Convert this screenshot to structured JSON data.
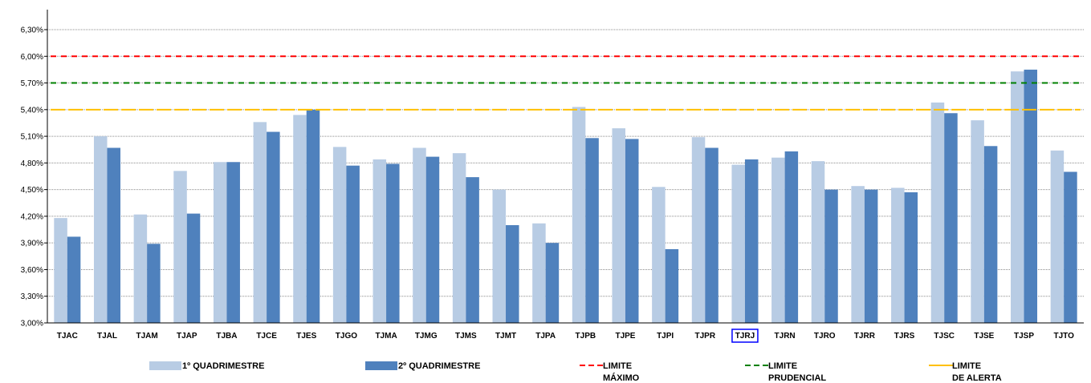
{
  "chart_data": {
    "type": "bar",
    "categories": [
      "TJAC",
      "TJAL",
      "TJAM",
      "TJAP",
      "TJBA",
      "TJCE",
      "TJES",
      "TJGO",
      "TJMA",
      "TJMG",
      "TJMS",
      "TJMT",
      "TJPA",
      "TJPB",
      "TJPE",
      "TJPI",
      "TJPR",
      "TJRJ",
      "TJRN",
      "TJRO",
      "TJRR",
      "TJRS",
      "TJSC",
      "TJSE",
      "TJSP",
      "TJTO"
    ],
    "highlighted_category": "TJRJ",
    "series": [
      {
        "name": "1º QUADRIMESTRE",
        "color": "#b8cce4",
        "values": [
          4.18,
          5.1,
          4.22,
          4.71,
          4.81,
          5.26,
          5.34,
          4.98,
          4.84,
          4.97,
          4.91,
          4.5,
          4.12,
          5.43,
          5.19,
          4.53,
          5.09,
          4.78,
          4.86,
          4.82,
          4.54,
          4.52,
          5.48,
          5.28,
          5.83,
          4.94
        ]
      },
      {
        "name": "2º QUADRIMESTRE",
        "color": "#4f81bd",
        "values": [
          3.97,
          4.97,
          3.89,
          4.23,
          4.81,
          5.15,
          5.4,
          4.77,
          4.79,
          4.87,
          4.64,
          4.1,
          3.9,
          5.08,
          5.07,
          3.83,
          4.97,
          4.84,
          4.93,
          4.5,
          4.5,
          4.47,
          5.36,
          4.99,
          5.85,
          4.7
        ]
      }
    ],
    "reference_lines": [
      {
        "value": 6.0,
        "name_lines": [
          "LIMITE",
          "MÁXIMO"
        ],
        "color": "#ff0000"
      },
      {
        "value": 5.7,
        "name_lines": [
          "LIMITE",
          "PRUDENCIAL"
        ],
        "color": "#008000"
      },
      {
        "value": 5.4,
        "name_lines": [
          "LIMITE",
          "DE ALERTA"
        ],
        "color": "#ffc000"
      }
    ],
    "ylim": [
      3.0,
      6.3
    ],
    "yticks": [
      "3,00%",
      "3,30%",
      "3,60%",
      "3,90%",
      "4,20%",
      "4,50%",
      "4,80%",
      "5,10%",
      "5,40%",
      "5,70%",
      "6,00%",
      "6,30%"
    ],
    "ytick_values": [
      3.0,
      3.3,
      3.6,
      3.9,
      4.2,
      4.5,
      4.8,
      5.1,
      5.4,
      5.7,
      6.0,
      6.3
    ],
    "grid": true,
    "legend_position": "bottom"
  }
}
